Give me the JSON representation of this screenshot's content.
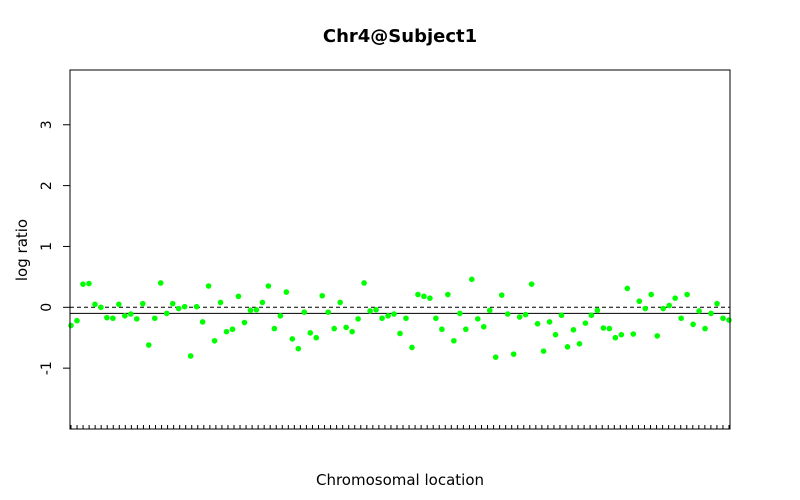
{
  "chart_data": {
    "type": "scatter",
    "title": "Chr4@Subject1",
    "xlabel": "Chromosomal location",
    "ylabel": "log ratio",
    "ylim": [
      -2,
      3.9
    ],
    "yticks": [
      -1,
      0,
      1,
      2,
      3
    ],
    "ytick_labels": [
      "-1",
      "0",
      "1",
      "2",
      "3"
    ],
    "x_tick_count": 110,
    "reference_lines": [
      {
        "name": "baseline",
        "y": 0,
        "style": "dashed",
        "color": "#000000"
      },
      {
        "name": "segment-mean",
        "y": -0.1,
        "style": "solid",
        "color": "#000000"
      }
    ],
    "point_color": "#00ff00",
    "series": [
      {
        "values": [
          -0.3,
          -0.22,
          0.38,
          0.39,
          0.05,
          0.0,
          -0.17,
          -0.18,
          0.05,
          -0.14,
          -0.11,
          -0.19,
          0.06,
          -0.62,
          -0.18,
          0.4,
          -0.1,
          0.06,
          -0.02,
          0.01,
          -0.8,
          0.01,
          -0.24,
          0.35,
          -0.55,
          0.08,
          -0.4,
          -0.36,
          0.18,
          -0.25,
          -0.05,
          -0.04,
          0.08,
          0.35,
          -0.35,
          -0.14,
          0.25,
          -0.52,
          -0.68,
          -0.08,
          -0.42,
          -0.5,
          0.19,
          -0.08,
          -0.35,
          0.08,
          -0.33,
          -0.4,
          -0.19,
          0.4,
          -0.06,
          -0.04,
          -0.18,
          -0.14,
          -0.11,
          -0.43,
          -0.18,
          -0.66,
          0.21,
          0.18,
          0.15,
          -0.18,
          -0.36,
          0.21,
          -0.55,
          -0.1,
          -0.36,
          0.46,
          -0.19,
          -0.32,
          -0.05,
          -0.82,
          0.2,
          -0.11,
          -0.77,
          -0.16,
          -0.12,
          0.38,
          -0.27,
          -0.72,
          -0.24,
          -0.45,
          -0.13,
          -0.65,
          -0.37,
          -0.6,
          -0.26,
          -0.13,
          -0.05,
          -0.34,
          -0.35,
          -0.5,
          -0.45,
          0.31,
          -0.44,
          0.1,
          -0.02,
          0.21,
          -0.47,
          -0.02,
          0.03,
          0.15,
          -0.18,
          0.21,
          -0.28,
          -0.06,
          -0.35,
          -0.1,
          0.06,
          -0.18,
          -0.21
        ]
      }
    ]
  }
}
